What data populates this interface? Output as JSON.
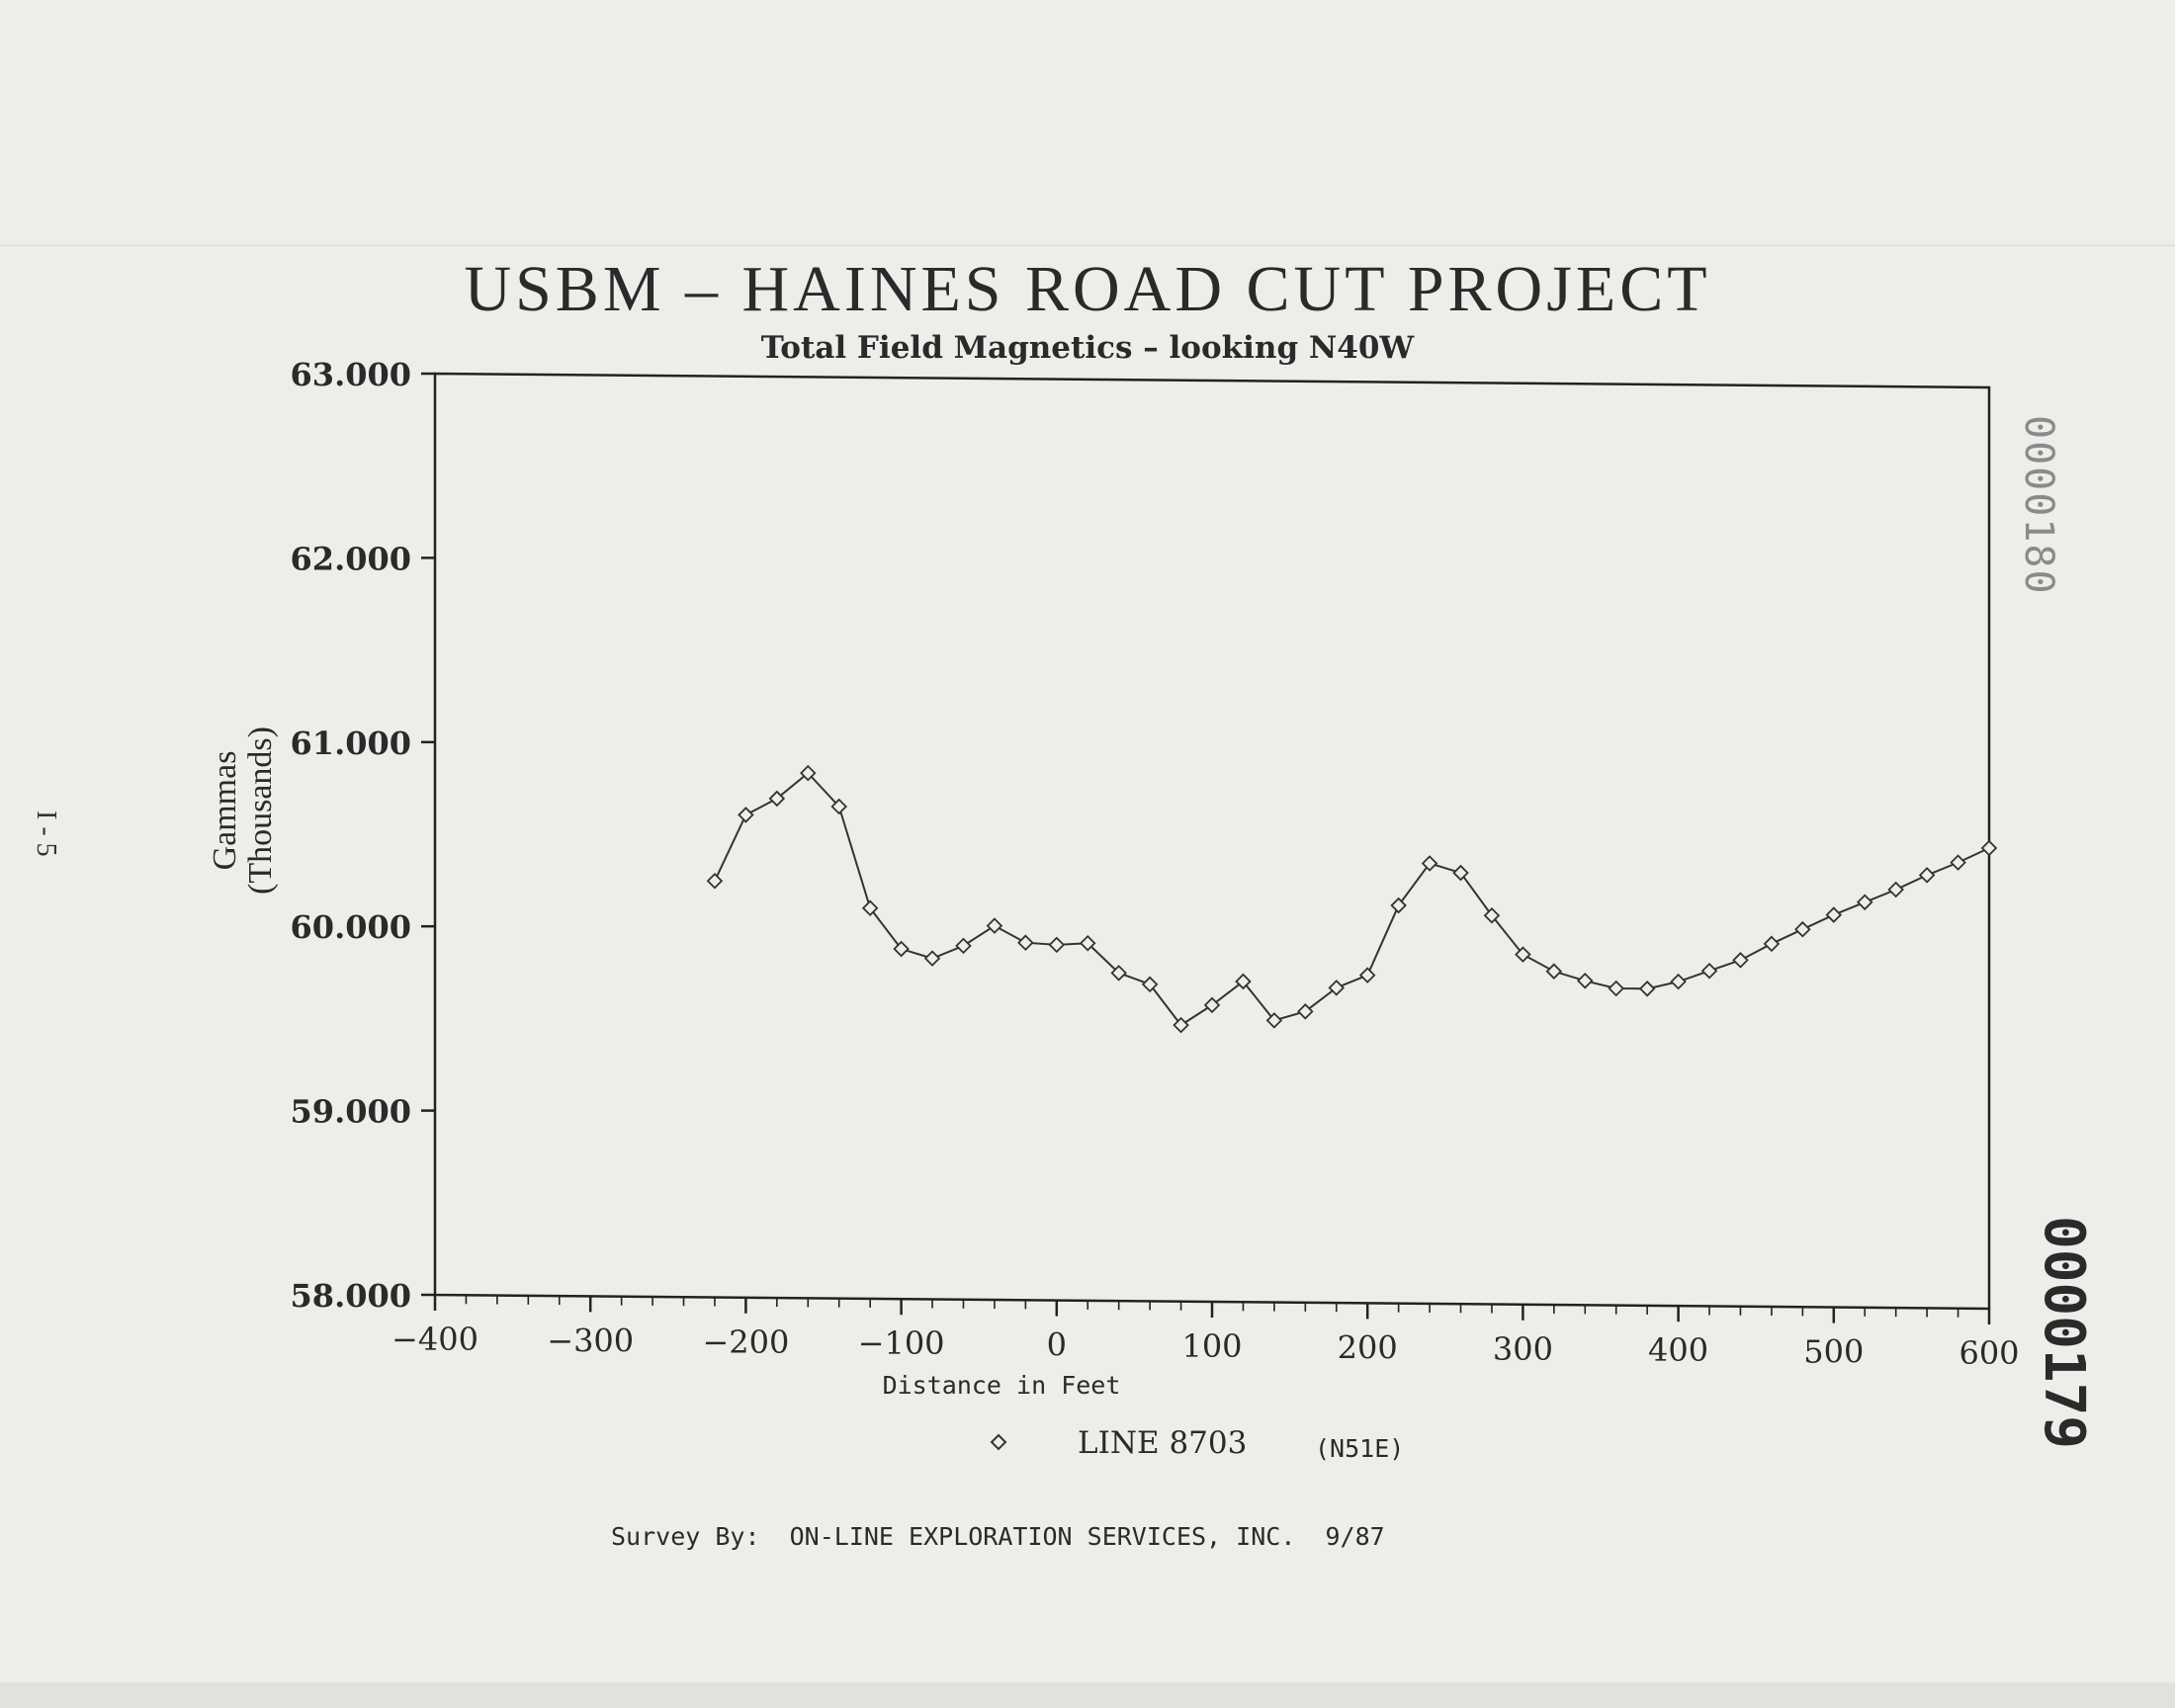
{
  "page": {
    "title": "USBM  –  HAINES ROAD CUT PROJECT",
    "subtitle": "Total Field Magnetics – looking N40W",
    "page_number": "I - 5",
    "stamp_top": "0000180",
    "stamp_bottom": "0000179",
    "survey_label": "Survey By:",
    "survey_text": "ON-LINE EXPLORATION SERVICES, INC.  9/87"
  },
  "chart_data": {
    "type": "line",
    "title": "USBM  –  HAINES ROAD CUT PROJECT",
    "subtitle": "Total Field Magnetics – looking N40W",
    "xlabel": "Distance in Feet",
    "ylabel_line1": "Gammas",
    "ylabel_line2": "(Thousands)",
    "xlim": [
      -400,
      600
    ],
    "ylim": [
      58,
      63
    ],
    "x_ticks": [
      "-400",
      "-300",
      "-200",
      "-100",
      "0",
      "100",
      "200",
      "300",
      "400",
      "500",
      "600"
    ],
    "y_ticks": [
      "58.000",
      "59.000",
      "60.000",
      "61.000",
      "62.000",
      "63.000"
    ],
    "legend_position": "bottom-center",
    "line_color": "#333333",
    "series": [
      {
        "name": "LINE 8703",
        "name_suffix": "(N51E)",
        "marker": "diamond",
        "x": [
          -220,
          -200,
          -180,
          -160,
          -140,
          -120,
          -100,
          -80,
          -60,
          -40,
          -20,
          0,
          20,
          40,
          60,
          80,
          100,
          120,
          140,
          160,
          180,
          200,
          220,
          240,
          260,
          280,
          300,
          320,
          340,
          360,
          380,
          400,
          420,
          440,
          460,
          480,
          500,
          520,
          540,
          560,
          580,
          600
        ],
        "y": [
          60.26,
          60.62,
          60.71,
          60.85,
          60.67,
          60.12,
          59.9,
          59.85,
          59.92,
          60.03,
          59.94,
          59.93,
          59.94,
          59.78,
          59.72,
          59.5,
          59.61,
          59.74,
          59.53,
          59.58,
          59.71,
          59.78,
          60.16,
          60.39,
          60.34,
          60.11,
          59.9,
          59.81,
          59.76,
          59.72,
          59.72,
          59.76,
          59.82,
          59.88,
          59.97,
          60.05,
          60.13,
          60.2,
          60.27,
          60.35,
          60.42,
          60.5
        ]
      }
    ]
  }
}
